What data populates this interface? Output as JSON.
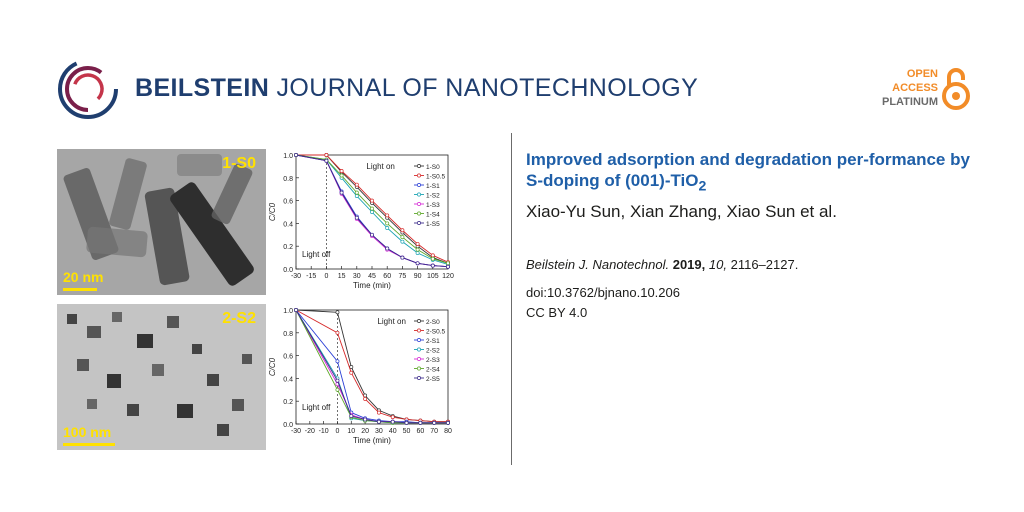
{
  "header": {
    "journal_bold": "BEILSTEIN",
    "journal_rest": " JOURNAL OF NANOTECHNOLOGY",
    "badge": {
      "line1": "OPEN",
      "line2": "ACCESS",
      "line3": "PLATINUM"
    }
  },
  "article": {
    "title_main": "Improved adsorption and degradation per-formance by S-doping of (001)-TiO",
    "title_sub": "2",
    "authors": "Xiao-Yu Sun, Xian Zhang, Xiao Sun et al.",
    "journal_abbr": "Beilstein J. Nanotechnol.",
    "year": "2019,",
    "volume": "10,",
    "pages": "2116–2127.",
    "doi": "doi:10.3762/bjnano.10.206",
    "license": "CC BY 4.0"
  },
  "figure": {
    "tem_top": {
      "label": "1-S0",
      "scale": "20 nm"
    },
    "tem_bottom": {
      "label": "2-S2",
      "scale": "100 nm"
    }
  },
  "colors": {
    "journal_blue": "#1f3e6f",
    "title_blue": "#1f5fa8",
    "oa_orange": "#f28c28"
  },
  "chart_data": [
    {
      "type": "line",
      "xlabel": "Time (min)",
      "ylabel": "C/C0",
      "xlim": [
        -30,
        120
      ],
      "ylim": [
        0,
        1.0
      ],
      "xticks": [
        "-30",
        "-15",
        "0",
        "15",
        "30",
        "45",
        "60",
        "75",
        "90",
        "105",
        "120"
      ],
      "yticks": [
        "0.0",
        "0.2",
        "0.4",
        "0.6",
        "0.8",
        "1.0"
      ],
      "annotations": [
        "Light on",
        "Light off"
      ],
      "x": [
        -30,
        0,
        15,
        30,
        45,
        60,
        75,
        90,
        105,
        120
      ],
      "series": [
        {
          "name": "1-S0",
          "color": "#333333",
          "values": [
            1.0,
            1.0,
            0.85,
            0.72,
            0.58,
            0.45,
            0.32,
            0.2,
            0.1,
            0.05
          ]
        },
        {
          "name": "1-S0.5",
          "color": "#d62a2a",
          "values": [
            1.0,
            1.0,
            0.86,
            0.74,
            0.6,
            0.47,
            0.34,
            0.22,
            0.12,
            0.06
          ]
        },
        {
          "name": "1-S1",
          "color": "#2a3fd6",
          "values": [
            1.0,
            0.95,
            0.68,
            0.46,
            0.3,
            0.18,
            0.1,
            0.05,
            0.03,
            0.02
          ]
        },
        {
          "name": "1-S2",
          "color": "#1aa3b3",
          "values": [
            1.0,
            0.96,
            0.8,
            0.64,
            0.5,
            0.36,
            0.24,
            0.14,
            0.08,
            0.04
          ]
        },
        {
          "name": "1-S3",
          "color": "#d62ad6",
          "values": [
            1.0,
            0.95,
            0.66,
            0.44,
            0.29,
            0.17,
            0.1,
            0.05,
            0.03,
            0.02
          ]
        },
        {
          "name": "1-S4",
          "color": "#5ea82a",
          "values": [
            1.0,
            0.96,
            0.82,
            0.67,
            0.53,
            0.4,
            0.28,
            0.17,
            0.09,
            0.05
          ]
        },
        {
          "name": "1-S5",
          "color": "#3a2a8a",
          "values": [
            1.0,
            0.95,
            0.67,
            0.45,
            0.3,
            0.18,
            0.1,
            0.05,
            0.03,
            0.02
          ]
        }
      ]
    },
    {
      "type": "line",
      "xlabel": "Time (min)",
      "ylabel": "C/C0",
      "xlim": [
        -30,
        80
      ],
      "ylim": [
        0,
        1.0
      ],
      "xticks": [
        "-30",
        "-20",
        "-10",
        "0",
        "10",
        "20",
        "30",
        "40",
        "50",
        "60",
        "70",
        "80"
      ],
      "yticks": [
        "0.0",
        "0.2",
        "0.4",
        "0.6",
        "0.8",
        "1.0"
      ],
      "annotations": [
        "Light on",
        "Light off"
      ],
      "x": [
        -30,
        0,
        10,
        20,
        30,
        40,
        50,
        60,
        70,
        80
      ],
      "series": [
        {
          "name": "2-S0",
          "color": "#333333",
          "values": [
            1.0,
            0.98,
            0.5,
            0.25,
            0.12,
            0.07,
            0.04,
            0.03,
            0.02,
            0.02
          ]
        },
        {
          "name": "2-S0.5",
          "color": "#d62a2a",
          "values": [
            1.0,
            0.8,
            0.45,
            0.22,
            0.1,
            0.06,
            0.04,
            0.03,
            0.02,
            0.02
          ]
        },
        {
          "name": "2-S1",
          "color": "#2a3fd6",
          "values": [
            1.0,
            0.55,
            0.1,
            0.05,
            0.03,
            0.02,
            0.02,
            0.01,
            0.01,
            0.01
          ]
        },
        {
          "name": "2-S2",
          "color": "#1aa3b3",
          "values": [
            1.0,
            0.4,
            0.05,
            0.03,
            0.02,
            0.01,
            0.01,
            0.01,
            0.01,
            0.01
          ]
        },
        {
          "name": "2-S3",
          "color": "#d62ad6",
          "values": [
            1.0,
            0.35,
            0.08,
            0.04,
            0.02,
            0.02,
            0.01,
            0.01,
            0.01,
            0.01
          ]
        },
        {
          "name": "2-S4",
          "color": "#5ea82a",
          "values": [
            1.0,
            0.3,
            0.06,
            0.03,
            0.02,
            0.01,
            0.01,
            0.01,
            0.01,
            0.01
          ]
        },
        {
          "name": "2-S5",
          "color": "#3a2a8a",
          "values": [
            1.0,
            0.38,
            0.07,
            0.04,
            0.02,
            0.02,
            0.01,
            0.01,
            0.01,
            0.01
          ]
        }
      ]
    }
  ]
}
